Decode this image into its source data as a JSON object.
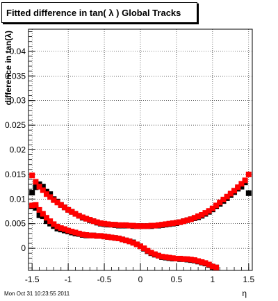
{
  "title": "Fitted difference in tan( λ )  Global Tracks",
  "footer": "Mon Oct 31 10:23:55 2011",
  "chart_data": {
    "type": "scatter",
    "title": "Fitted difference in tan( λ )  Global Tracks",
    "xlabel": "η",
    "ylabel": "difference in tan(λ)",
    "xlim": [
      -1.55,
      1.55
    ],
    "ylim": [
      -0.0045,
      0.0445
    ],
    "xticks": [
      "-1.5",
      "-1",
      "-0.5",
      "0",
      "0.5",
      "1",
      "1.5"
    ],
    "yticks": [
      "0",
      "0.005",
      "0.01",
      "0.015",
      "0.02",
      "0.025",
      "0.03",
      "0.035",
      "0.04"
    ],
    "grid": true,
    "colors": {
      "series_black": "#000000",
      "series_red": "#ff0000"
    },
    "series": [
      {
        "marker": "square",
        "color": "#000000",
        "x": [
          -1.5,
          -1.45,
          -1.4,
          -1.35,
          -1.3,
          -1.25,
          -1.2,
          -1.15,
          -1.1,
          -1.05,
          -1.0,
          -0.95,
          -0.9,
          -0.85,
          -0.8,
          -0.75,
          -0.7,
          -0.65,
          -0.6,
          -0.55,
          -0.5,
          -0.45,
          -0.4,
          -0.35,
          -0.3,
          -0.25,
          -0.2,
          -0.15,
          -0.1,
          -0.05,
          0.0,
          0.05,
          0.1,
          0.15,
          0.2,
          0.25,
          0.3,
          0.35,
          0.4,
          0.45,
          0.5,
          0.55,
          0.6,
          0.65,
          0.7,
          0.75,
          0.8,
          0.85,
          0.9,
          0.95,
          1.0,
          1.05,
          1.1,
          1.15,
          1.2,
          1.25,
          1.3,
          1.35,
          1.4,
          1.45,
          1.5
        ],
        "y": [
          0.0113,
          0.0124,
          0.013,
          0.0125,
          0.0115,
          0.011,
          0.01,
          0.0095,
          0.0088,
          0.0083,
          0.0078,
          0.0074,
          0.007,
          0.0066,
          0.0062,
          0.006,
          0.0057,
          0.0055,
          0.0052,
          0.005,
          0.0049,
          0.0048,
          0.0048,
          0.0047,
          0.0046,
          0.0046,
          0.0046,
          0.0046,
          0.0045,
          0.0045,
          0.0045,
          0.0045,
          0.0045,
          0.0045,
          0.0046,
          0.0046,
          0.0047,
          0.0048,
          0.0049,
          0.005,
          0.0051,
          0.0053,
          0.0055,
          0.0057,
          0.0059,
          0.0061,
          0.0063,
          0.0066,
          0.007,
          0.0074,
          0.0079,
          0.0085,
          0.009,
          0.0096,
          0.0102,
          0.0108,
          0.0114,
          0.0121,
          0.0125,
          0.0134,
          0.0112
        ]
      },
      {
        "marker": "square",
        "color": "#000000",
        "x": [
          -1.5,
          -1.45,
          -1.4,
          -1.35,
          -1.3,
          -1.25,
          -1.2,
          -1.15,
          -1.1,
          -1.05,
          -1.0,
          -0.95,
          -0.9,
          -0.85,
          -0.8,
          -0.75,
          -0.7,
          -0.65,
          -0.6,
          -0.55,
          -0.5,
          -0.45,
          -0.4,
          -0.35,
          -0.3,
          -0.25,
          -0.2,
          -0.15,
          -0.1,
          -0.05,
          0.0,
          0.05,
          0.1,
          0.15,
          0.2,
          0.25,
          0.3,
          0.35,
          0.4,
          0.45,
          0.5,
          0.55,
          0.6,
          0.65,
          0.7,
          0.75,
          0.8,
          0.85,
          0.9,
          0.95,
          1.0,
          1.05
        ],
        "y": [
          0.0085,
          0.0082,
          0.0067,
          0.0065,
          0.0055,
          0.005,
          0.0045,
          0.004,
          0.0038,
          0.0036,
          0.0034,
          0.0032,
          0.003,
          0.0029,
          0.0027,
          0.0026,
          0.0026,
          0.0026,
          0.0025,
          0.0025,
          0.0024,
          0.0023,
          0.0022,
          0.0021,
          0.002,
          0.0018,
          0.0016,
          0.0014,
          0.0012,
          0.0008,
          0.0004,
          -0.0001,
          -0.0006,
          -0.001,
          -0.0013,
          -0.0015,
          -0.0018,
          -0.0019,
          -0.002,
          -0.0021,
          -0.0021,
          -0.0022,
          -0.0022,
          -0.0023,
          -0.0024,
          -0.0025,
          -0.0027,
          -0.0029,
          -0.0031,
          -0.0034,
          -0.0038,
          -0.0039
        ]
      },
      {
        "marker": "square",
        "color": "#ff0000",
        "x": [
          -1.5,
          -1.45,
          -1.4,
          -1.35,
          -1.3,
          -1.25,
          -1.2,
          -1.15,
          -1.1,
          -1.05,
          -1.0,
          -0.95,
          -0.9,
          -0.85,
          -0.8,
          -0.75,
          -0.7,
          -0.65,
          -0.6,
          -0.55,
          -0.5,
          -0.45,
          -0.4,
          -0.35,
          -0.3,
          -0.25,
          -0.2,
          -0.15,
          -0.1,
          -0.05,
          0.0,
          0.05,
          0.1,
          0.15,
          0.2,
          0.25,
          0.3,
          0.35,
          0.4,
          0.45,
          0.5,
          0.55,
          0.6,
          0.65,
          0.7,
          0.75,
          0.8,
          0.85,
          0.9,
          0.95,
          1.0,
          1.05,
          1.1,
          1.15,
          1.2,
          1.25,
          1.3,
          1.35,
          1.4,
          1.45,
          1.5
        ],
        "y": [
          0.0148,
          0.0135,
          0.0125,
          0.0118,
          0.011,
          0.0104,
          0.0098,
          0.0093,
          0.0088,
          0.0083,
          0.0078,
          0.0074,
          0.007,
          0.0066,
          0.0063,
          0.006,
          0.0058,
          0.0055,
          0.0053,
          0.0051,
          0.005,
          0.0049,
          0.0048,
          0.0048,
          0.0047,
          0.0047,
          0.0047,
          0.0046,
          0.0046,
          0.0045,
          0.0045,
          0.0045,
          0.0045,
          0.0046,
          0.0046,
          0.0047,
          0.0048,
          0.0049,
          0.005,
          0.0051,
          0.0052,
          0.0053,
          0.0055,
          0.0057,
          0.0059,
          0.0062,
          0.0065,
          0.0068,
          0.0072,
          0.0076,
          0.0081,
          0.0087,
          0.0093,
          0.0099,
          0.0105,
          0.0111,
          0.0117,
          0.0124,
          0.0131,
          0.0138,
          0.015
        ]
      },
      {
        "marker": "square",
        "color": "#ff0000",
        "x": [
          -1.5,
          -1.45,
          -1.4,
          -1.35,
          -1.3,
          -1.25,
          -1.2,
          -1.15,
          -1.1,
          -1.05,
          -1.0,
          -0.95,
          -0.9,
          -0.85,
          -0.8,
          -0.75,
          -0.7,
          -0.65,
          -0.6,
          -0.55,
          -0.5,
          -0.45,
          -0.4,
          -0.35,
          -0.3,
          -0.25,
          -0.2,
          -0.15,
          -0.1,
          -0.05,
          0.0,
          0.05,
          0.1,
          0.15,
          0.2,
          0.25,
          0.3,
          0.35,
          0.4,
          0.45,
          0.5,
          0.55,
          0.6,
          0.65,
          0.7,
          0.75,
          0.8,
          0.85,
          0.9,
          0.95,
          1.0,
          1.05
        ],
        "y": [
          0.0087,
          0.0088,
          0.0078,
          0.007,
          0.0062,
          0.0055,
          0.0049,
          0.0044,
          0.0041,
          0.0039,
          0.0036,
          0.0034,
          0.0032,
          0.003,
          0.0028,
          0.0027,
          0.0026,
          0.0026,
          0.0025,
          0.0025,
          0.0024,
          0.0023,
          0.0022,
          0.0021,
          0.002,
          0.0018,
          0.0016,
          0.0014,
          0.0011,
          0.0008,
          0.0004,
          0.0,
          -0.0005,
          -0.0009,
          -0.0012,
          -0.0015,
          -0.0017,
          -0.0018,
          -0.0019,
          -0.002,
          -0.0021,
          -0.0021,
          -0.0022,
          -0.0022,
          -0.0023,
          -0.0024,
          -0.0026,
          -0.0028,
          -0.003,
          -0.0033,
          -0.0037,
          -0.0039
        ]
      }
    ]
  }
}
